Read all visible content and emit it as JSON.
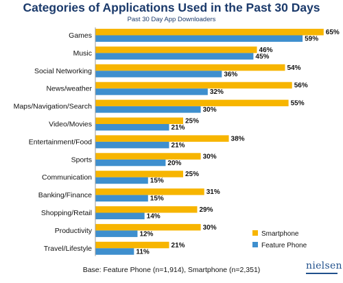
{
  "chart_data": {
    "type": "bar",
    "orientation": "horizontal",
    "title": "Categories of Applications Used in the Past 30 Days",
    "subtitle": "Past 30 Day App Downloaders",
    "categories": [
      "Games",
      "Music",
      "Social Networking",
      "News/weather",
      "Maps/Navigation/Search",
      "Video/Movies",
      "Entertainment/Food",
      "Sports",
      "Communication",
      "Banking/Finance",
      "Shopping/Retail",
      "Productivity",
      "Travel/Lifestyle"
    ],
    "series": [
      {
        "name": "Smartphone",
        "values": [
          65,
          46,
          54,
          56,
          55,
          25,
          38,
          30,
          25,
          31,
          29,
          30,
          21
        ],
        "color": "#f7b500"
      },
      {
        "name": "Feature Phone",
        "values": [
          59,
          45,
          36,
          32,
          30,
          21,
          21,
          20,
          15,
          15,
          14,
          12,
          11
        ],
        "color": "#3e8fce"
      }
    ],
    "value_suffix": "%",
    "xlim": [
      0,
      65
    ],
    "grid": false,
    "legend_position": "bottom-right"
  },
  "footer": {
    "base_note": "Base: Feature Phone (n=1,914), Smartphone (n=2,351)",
    "logo_text": "nielsen"
  }
}
